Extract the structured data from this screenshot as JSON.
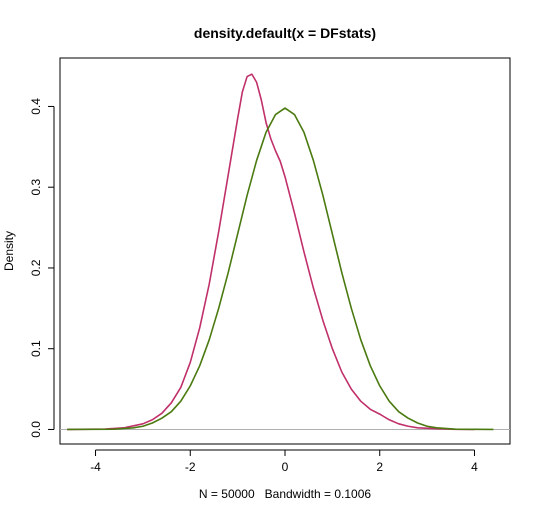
{
  "chart_data": {
    "type": "line",
    "title": "density.default(x = DFstats)",
    "xlabel": "N = 50000   Bandwidth = 0.1006",
    "ylabel": "Density",
    "xlim": [
      -4.75,
      4.75
    ],
    "ylim": [
      -0.018,
      0.46
    ],
    "xticks": [
      "-4",
      "-2",
      "0",
      "2",
      "4"
    ],
    "yticks": [
      "0.0",
      "0.1",
      "0.2",
      "0.3",
      "0.4"
    ],
    "grid": false,
    "legend": "none",
    "baseline": {
      "y": 0,
      "color": "#b0b0b0"
    },
    "series": [
      {
        "color": "#c0306a",
        "points": [
          [
            -4.6,
            0.0
          ],
          [
            -3.8,
            0.0005
          ],
          [
            -3.4,
            0.002
          ],
          [
            -3.0,
            0.007
          ],
          [
            -2.8,
            0.012
          ],
          [
            -2.6,
            0.02
          ],
          [
            -2.4,
            0.033
          ],
          [
            -2.2,
            0.052
          ],
          [
            -2.0,
            0.083
          ],
          [
            -1.8,
            0.126
          ],
          [
            -1.6,
            0.18
          ],
          [
            -1.4,
            0.245
          ],
          [
            -1.2,
            0.315
          ],
          [
            -1.0,
            0.385
          ],
          [
            -0.9,
            0.418
          ],
          [
            -0.8,
            0.437
          ],
          [
            -0.7,
            0.44
          ],
          [
            -0.6,
            0.43
          ],
          [
            -0.5,
            0.408
          ],
          [
            -0.4,
            0.38
          ],
          [
            -0.3,
            0.36
          ],
          [
            -0.2,
            0.345
          ],
          [
            -0.1,
            0.332
          ],
          [
            0.0,
            0.313
          ],
          [
            0.2,
            0.268
          ],
          [
            0.4,
            0.22
          ],
          [
            0.6,
            0.175
          ],
          [
            0.8,
            0.135
          ],
          [
            1.0,
            0.1
          ],
          [
            1.2,
            0.071
          ],
          [
            1.4,
            0.05
          ],
          [
            1.6,
            0.035
          ],
          [
            1.8,
            0.025
          ],
          [
            2.0,
            0.019
          ],
          [
            2.2,
            0.012
          ],
          [
            2.4,
            0.007
          ],
          [
            2.6,
            0.004
          ],
          [
            2.8,
            0.002
          ],
          [
            3.2,
            0.001
          ],
          [
            3.6,
            0.0002
          ],
          [
            4.0,
            0.0
          ]
        ]
      },
      {
        "color": "#4a7a10",
        "points": [
          [
            -4.6,
            0.0
          ],
          [
            -3.6,
            0.0004
          ],
          [
            -3.2,
            0.002
          ],
          [
            -3.0,
            0.004
          ],
          [
            -2.8,
            0.008
          ],
          [
            -2.6,
            0.014
          ],
          [
            -2.4,
            0.022
          ],
          [
            -2.2,
            0.035
          ],
          [
            -2.0,
            0.054
          ],
          [
            -1.8,
            0.079
          ],
          [
            -1.6,
            0.111
          ],
          [
            -1.4,
            0.15
          ],
          [
            -1.2,
            0.194
          ],
          [
            -1.0,
            0.242
          ],
          [
            -0.8,
            0.29
          ],
          [
            -0.6,
            0.333
          ],
          [
            -0.4,
            0.368
          ],
          [
            -0.2,
            0.39
          ],
          [
            0.0,
            0.398
          ],
          [
            0.2,
            0.39
          ],
          [
            0.4,
            0.368
          ],
          [
            0.6,
            0.333
          ],
          [
            0.8,
            0.29
          ],
          [
            1.0,
            0.242
          ],
          [
            1.2,
            0.194
          ],
          [
            1.4,
            0.15
          ],
          [
            1.6,
            0.111
          ],
          [
            1.8,
            0.079
          ],
          [
            2.0,
            0.054
          ],
          [
            2.2,
            0.035
          ],
          [
            2.4,
            0.022
          ],
          [
            2.6,
            0.014
          ],
          [
            2.8,
            0.008
          ],
          [
            3.0,
            0.004
          ],
          [
            3.2,
            0.002
          ],
          [
            3.6,
            0.0004
          ],
          [
            4.4,
            0.0
          ]
        ]
      }
    ]
  }
}
